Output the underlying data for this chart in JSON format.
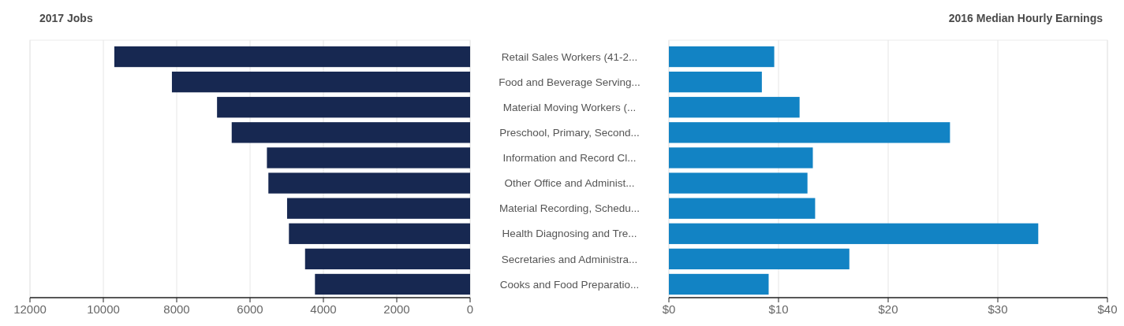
{
  "chart_data": [
    {
      "type": "bar",
      "orientation": "horizontal",
      "title": "2017 Jobs",
      "categories": [
        "Retail Sales Workers (41-2...",
        "Food and Beverage Serving...",
        "Material Moving Workers (...",
        "Preschool, Primary, Second...",
        "Information and Record Cl...",
        "Other Office and Administ...",
        "Material Recording, Schedu...",
        "Health Diagnosing and Tre...",
        "Secretaries and Administra...",
        "Cooks and Food Preparatio..."
      ],
      "values": [
        9700,
        8130,
        6900,
        6500,
        5540,
        5500,
        4990,
        4940,
        4500,
        4230
      ],
      "color": "#172851",
      "xlim": [
        12000,
        0
      ],
      "xticks": [
        12000,
        10000,
        8000,
        6000,
        4000,
        2000,
        0
      ],
      "grid": "x"
    },
    {
      "type": "bar",
      "orientation": "horizontal",
      "title": "2016 Median Hourly Earnings",
      "categories": [
        null,
        null,
        null,
        null,
        null,
        null,
        null,
        null,
        null,
        null
      ],
      "values": [
        9.61,
        8.48,
        11.92,
        25.64,
        13.13,
        12.64,
        13.34,
        33.69,
        16.46,
        9.1
      ],
      "color": "#1283c4",
      "xlim": [
        0,
        40
      ],
      "xticks": [
        {
          "value": 0,
          "label": "$0"
        },
        {
          "value": 10,
          "label": "$10"
        },
        {
          "value": 20,
          "label": "$20"
        },
        {
          "value": 30,
          "label": "$30"
        },
        {
          "value": 40,
          "label": "$40"
        }
      ],
      "grid": "x"
    }
  ]
}
